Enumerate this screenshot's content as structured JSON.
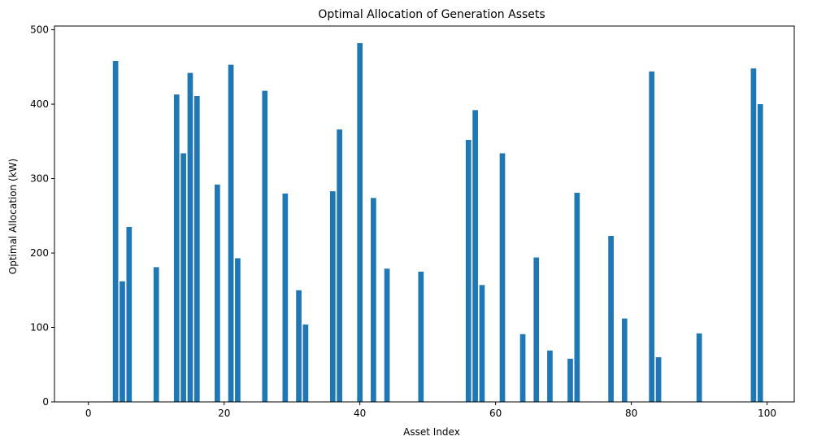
{
  "chart_data": {
    "type": "bar",
    "title": "Optimal Allocation of Generation Assets",
    "xlabel": "Asset Index",
    "ylabel": "Optimal Allocation (kW)",
    "xlim": [
      -5,
      104
    ],
    "ylim": [
      0,
      505
    ],
    "xticks": [
      0,
      20,
      40,
      60,
      80,
      100
    ],
    "yticks": [
      0,
      100,
      200,
      300,
      400,
      500
    ],
    "grid": false,
    "bar_color": "#1f77b4",
    "bars": [
      {
        "x": 4,
        "value": 458
      },
      {
        "x": 5,
        "value": 162
      },
      {
        "x": 6,
        "value": 235
      },
      {
        "x": 10,
        "value": 181
      },
      {
        "x": 13,
        "value": 413
      },
      {
        "x": 14,
        "value": 334
      },
      {
        "x": 15,
        "value": 442
      },
      {
        "x": 16,
        "value": 411
      },
      {
        "x": 19,
        "value": 292
      },
      {
        "x": 21,
        "value": 453
      },
      {
        "x": 22,
        "value": 193
      },
      {
        "x": 26,
        "value": 418
      },
      {
        "x": 29,
        "value": 280
      },
      {
        "x": 31,
        "value": 150
      },
      {
        "x": 32,
        "value": 104
      },
      {
        "x": 36,
        "value": 283
      },
      {
        "x": 37,
        "value": 366
      },
      {
        "x": 40,
        "value": 482
      },
      {
        "x": 42,
        "value": 274
      },
      {
        "x": 44,
        "value": 179
      },
      {
        "x": 49,
        "value": 175
      },
      {
        "x": 56,
        "value": 352
      },
      {
        "x": 57,
        "value": 392
      },
      {
        "x": 58,
        "value": 157
      },
      {
        "x": 61,
        "value": 334
      },
      {
        "x": 64,
        "value": 91
      },
      {
        "x": 66,
        "value": 194
      },
      {
        "x": 68,
        "value": 69
      },
      {
        "x": 71,
        "value": 58
      },
      {
        "x": 72,
        "value": 281
      },
      {
        "x": 77,
        "value": 223
      },
      {
        "x": 79,
        "value": 112
      },
      {
        "x": 83,
        "value": 444
      },
      {
        "x": 84,
        "value": 60
      },
      {
        "x": 90,
        "value": 92
      },
      {
        "x": 98,
        "value": 448
      },
      {
        "x": 99,
        "value": 400
      }
    ]
  }
}
